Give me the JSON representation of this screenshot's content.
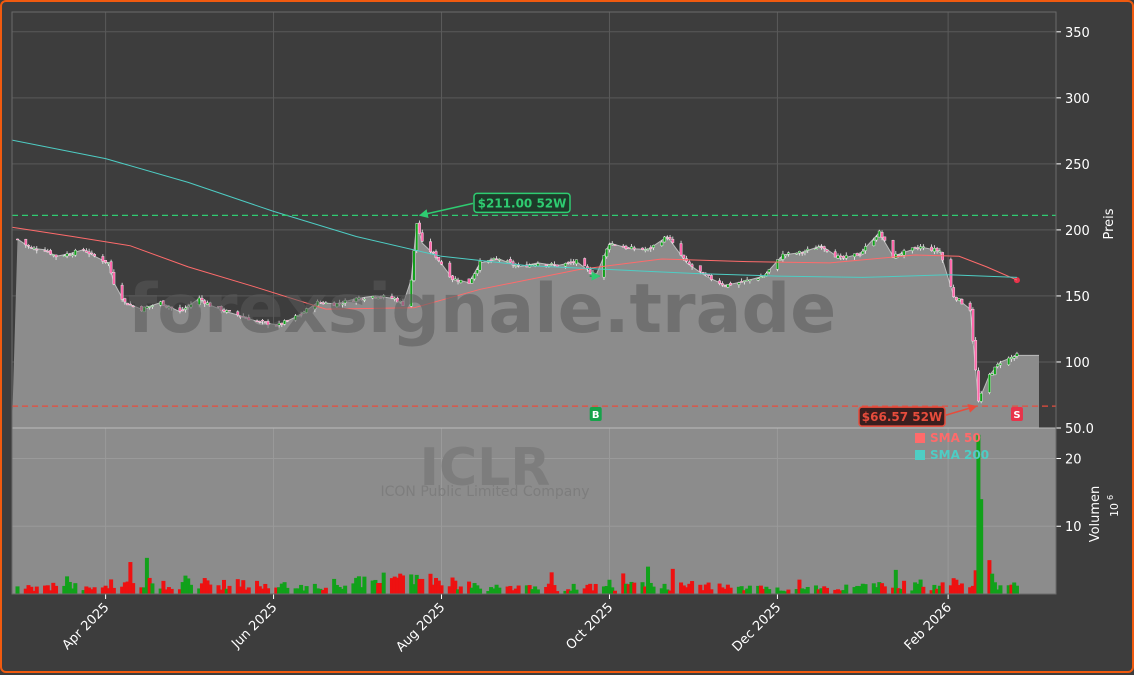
{
  "chart_data": {
    "type": "candlestick",
    "ticker": "ICLR",
    "company": "ICON Public Limited Company",
    "watermark": "forexsignale.trade",
    "price_axis_label": "Preis",
    "volume_axis_label": "Volumen",
    "volume_unit": "10",
    "volume_unit_exp": "6",
    "price_ticks": [
      "50.0",
      "100",
      "150",
      "200",
      "250",
      "300",
      "350"
    ],
    "price_tick_values": [
      50,
      100,
      150,
      200,
      250,
      300,
      350
    ],
    "price_range": [
      50,
      365
    ],
    "volume_ticks": [
      "10",
      "20"
    ],
    "volume_tick_values": [
      10,
      20
    ],
    "volume_range": [
      0,
      24.5
    ],
    "date_ticks": [
      "Apr 2025",
      "Jun 2025",
      "Aug 2025",
      "Oct 2025",
      "Dec 2025",
      "Feb 2026"
    ],
    "date_tick_values": [
      "2025-04-01",
      "2025-06-01",
      "2025-08-01",
      "2025-10-01",
      "2025-12-01",
      "2026-02-01"
    ],
    "date_range": [
      "2025-02-26",
      "2026-03-10"
    ],
    "last_close_date": "2026-02-26",
    "high_52w": {
      "value": 211.0,
      "date": "2025-07-23",
      "label": "$211.00 52W"
    },
    "low_52w": {
      "value": 66.57,
      "date": "2026-02-12",
      "label": "$66.57 52W"
    },
    "signals": [
      {
        "type": "B",
        "date": "2025-09-26"
      },
      {
        "type": "S",
        "date": "2026-02-26"
      }
    ],
    "legend": [
      {
        "name": "SMA 50",
        "color": "#ff6b6b"
      },
      {
        "name": "SMA 200",
        "color": "#4ecdc4"
      }
    ],
    "closes": [
      {
        "d": "2025-02-28",
        "c": 193
      },
      {
        "d": "2025-03-05",
        "c": 186
      },
      {
        "d": "2025-03-10",
        "c": 185
      },
      {
        "d": "2025-03-14",
        "c": 180
      },
      {
        "d": "2025-03-19",
        "c": 182
      },
      {
        "d": "2025-03-24",
        "c": 185
      },
      {
        "d": "2025-03-28",
        "c": 180
      },
      {
        "d": "2025-04-02",
        "c": 175
      },
      {
        "d": "2025-04-04",
        "c": 160
      },
      {
        "d": "2025-04-08",
        "c": 145
      },
      {
        "d": "2025-04-14",
        "c": 140
      },
      {
        "d": "2025-04-21",
        "c": 145
      },
      {
        "d": "2025-04-28",
        "c": 138
      },
      {
        "d": "2025-05-05",
        "c": 148
      },
      {
        "d": "2025-05-09",
        "c": 143
      },
      {
        "d": "2025-05-15",
        "c": 138
      },
      {
        "d": "2025-05-20",
        "c": 135
      },
      {
        "d": "2025-05-27",
        "c": 130
      },
      {
        "d": "2025-06-03",
        "c": 128
      },
      {
        "d": "2025-06-10",
        "c": 135
      },
      {
        "d": "2025-06-17",
        "c": 145
      },
      {
        "d": "2025-06-24",
        "c": 144
      },
      {
        "d": "2025-07-01",
        "c": 148
      },
      {
        "d": "2025-07-08",
        "c": 150
      },
      {
        "d": "2025-07-15",
        "c": 148
      },
      {
        "d": "2025-07-20",
        "c": 141
      },
      {
        "d": "2025-07-23",
        "c": 205
      },
      {
        "d": "2025-07-25",
        "c": 190
      },
      {
        "d": "2025-07-30",
        "c": 180
      },
      {
        "d": "2025-08-05",
        "c": 163
      },
      {
        "d": "2025-08-11",
        "c": 160
      },
      {
        "d": "2025-08-15",
        "c": 175
      },
      {
        "d": "2025-08-22",
        "c": 178
      },
      {
        "d": "2025-08-29",
        "c": 172
      },
      {
        "d": "2025-09-05",
        "c": 175
      },
      {
        "d": "2025-09-12",
        "c": 173
      },
      {
        "d": "2025-09-19",
        "c": 176
      },
      {
        "d": "2025-09-26",
        "c": 165
      },
      {
        "d": "2025-10-01",
        "c": 190
      },
      {
        "d": "2025-10-08",
        "c": 186
      },
      {
        "d": "2025-10-15",
        "c": 185
      },
      {
        "d": "2025-10-22",
        "c": 195
      },
      {
        "d": "2025-10-29",
        "c": 175
      },
      {
        "d": "2025-11-05",
        "c": 165
      },
      {
        "d": "2025-11-12",
        "c": 158
      },
      {
        "d": "2025-11-19",
        "c": 161
      },
      {
        "d": "2025-11-26",
        "c": 165
      },
      {
        "d": "2025-12-03",
        "c": 181
      },
      {
        "d": "2025-12-10",
        "c": 183
      },
      {
        "d": "2025-12-17",
        "c": 188
      },
      {
        "d": "2025-12-24",
        "c": 178
      },
      {
        "d": "2025-12-31",
        "c": 182
      },
      {
        "d": "2026-01-07",
        "c": 198
      },
      {
        "d": "2026-01-12",
        "c": 180
      },
      {
        "d": "2026-01-16",
        "c": 183
      },
      {
        "d": "2026-01-22",
        "c": 187
      },
      {
        "d": "2026-01-29",
        "c": 184
      },
      {
        "d": "2026-02-03",
        "c": 150
      },
      {
        "d": "2026-02-09",
        "c": 140
      },
      {
        "d": "2026-02-12",
        "c": 70
      },
      {
        "d": "2026-02-16",
        "c": 90
      },
      {
        "d": "2026-02-20",
        "c": 100
      },
      {
        "d": "2026-02-26",
        "c": 105
      }
    ],
    "sma50": [
      {
        "d": "2025-02-26",
        "v": 202
      },
      {
        "d": "2025-03-20",
        "v": 195
      },
      {
        "d": "2025-04-10",
        "v": 188
      },
      {
        "d": "2025-05-01",
        "v": 172
      },
      {
        "d": "2025-05-25",
        "v": 157
      },
      {
        "d": "2025-06-20",
        "v": 140
      },
      {
        "d": "2025-07-22",
        "v": 141
      },
      {
        "d": "2025-08-15",
        "v": 155
      },
      {
        "d": "2025-09-20",
        "v": 170
      },
      {
        "d": "2025-10-20",
        "v": 178
      },
      {
        "d": "2025-11-20",
        "v": 176
      },
      {
        "d": "2025-12-20",
        "v": 175
      },
      {
        "d": "2026-01-20",
        "v": 181
      },
      {
        "d": "2026-02-05",
        "v": 180
      },
      {
        "d": "2026-02-15",
        "v": 172
      },
      {
        "d": "2026-02-26",
        "v": 162
      }
    ],
    "sma200": [
      {
        "d": "2025-02-26",
        "v": 268
      },
      {
        "d": "2025-04-01",
        "v": 254
      },
      {
        "d": "2025-05-01",
        "v": 236
      },
      {
        "d": "2025-06-01",
        "v": 214
      },
      {
        "d": "2025-07-01",
        "v": 195
      },
      {
        "d": "2025-08-01",
        "v": 180
      },
      {
        "d": "2025-09-01",
        "v": 173
      },
      {
        "d": "2025-10-01",
        "v": 170
      },
      {
        "d": "2025-11-01",
        "v": 167
      },
      {
        "d": "2025-12-01",
        "v": 165
      },
      {
        "d": "2026-01-01",
        "v": 164
      },
      {
        "d": "2026-02-01",
        "v": 166
      },
      {
        "d": "2026-02-26",
        "v": 164
      }
    ],
    "volume_profile": [
      {
        "d": "2025-02-26",
        "v": 0.8
      },
      {
        "d": "2025-05-01",
        "v": 1.8
      },
      {
        "d": "2025-06-15",
        "v": 0.9
      },
      {
        "d": "2025-07-22",
        "v": 2.6
      },
      {
        "d": "2025-08-15",
        "v": 0.9
      },
      {
        "d": "2025-09-20",
        "v": 1.0
      },
      {
        "d": "2025-10-25",
        "v": 1.3
      },
      {
        "d": "2025-12-01",
        "v": 0.7
      },
      {
        "d": "2026-01-10",
        "v": 1.2
      },
      {
        "d": "2026-02-05",
        "v": 1.5
      },
      {
        "d": "2026-02-26",
        "v": 1.0
      }
    ],
    "volume_spikes": [
      {
        "d": "2026-02-11",
        "v": 3.5
      },
      {
        "d": "2026-02-12",
        "v": 23.5
      },
      {
        "d": "2026-02-13",
        "v": 14.0
      },
      {
        "d": "2026-02-16",
        "v": 5.0
      },
      {
        "d": "2026-02-17",
        "v": 3.0
      }
    ]
  },
  "colors": {
    "background": "#3d3d3d",
    "plot_bg": "#8c8c8c",
    "up": "#11a11a",
    "down": "#ee1111",
    "sma50": "#ff6b6b",
    "sma200": "#4ecdc4",
    "high_line": "#2ecc71",
    "low_line": "#e74c3c",
    "frame": "#f05a0f"
  }
}
